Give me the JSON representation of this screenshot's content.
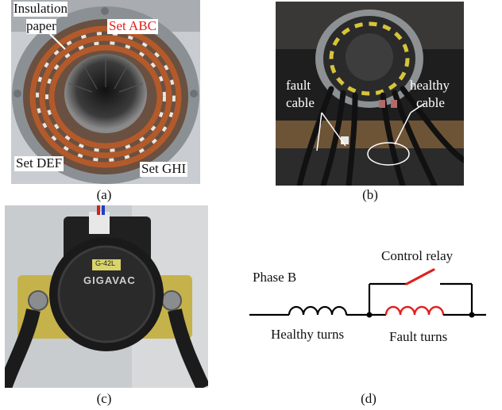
{
  "panel_a": {
    "caption": "(a)",
    "label_insulation_line1": "Insulation",
    "label_insulation_line2": "paper",
    "label_set_abc": "Set ABC",
    "label_set_def": "Set DEF",
    "label_set_ghi": "Set GHI",
    "colors": {
      "highlight": "#e0201e",
      "copper": "#b45a2a",
      "metal": "#9aa0a4"
    }
  },
  "panel_b": {
    "caption": "(b)",
    "label_fault_line1": "fault",
    "label_fault_line2": "cable",
    "label_healthy_line1": "healthy",
    "label_healthy_line2": "cable"
  },
  "panel_c": {
    "caption": "(c)",
    "relay_brand": "GIGAVAC",
    "relay_tag": "G-42L"
  },
  "panel_d": {
    "caption": "(d)",
    "label_phase": "Phase B",
    "label_control_relay": "Control relay",
    "label_healthy_turns": "Healthy turns",
    "label_fault_turns": "Fault turns",
    "colors": {
      "fault": "#e0201e",
      "wire": "#000000"
    }
  }
}
